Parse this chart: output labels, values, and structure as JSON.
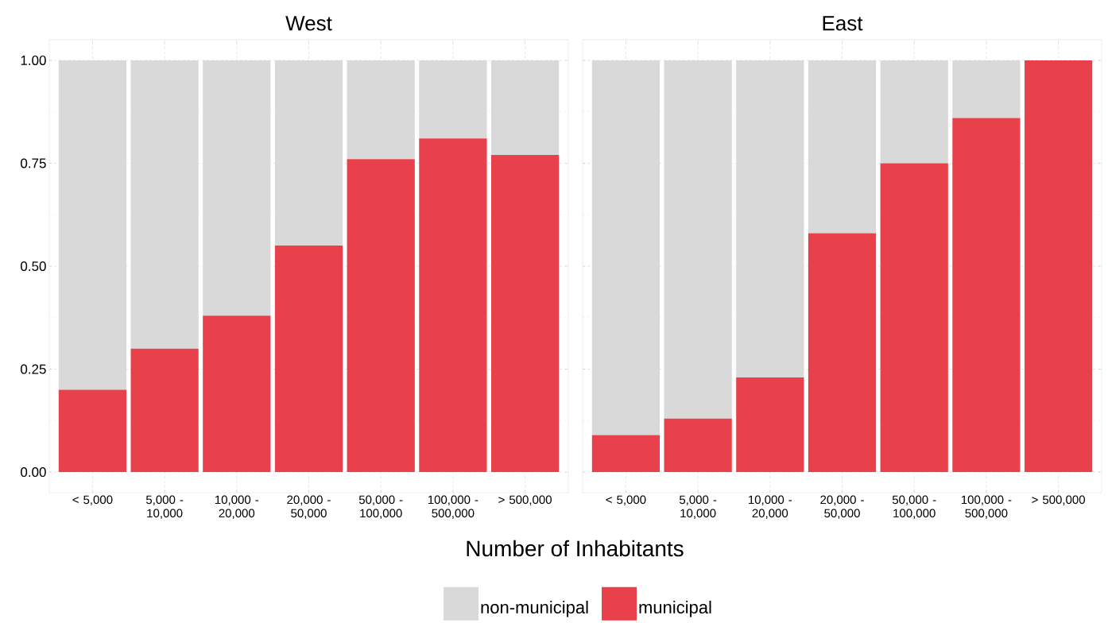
{
  "chart_data": [
    {
      "type": "bar",
      "title": "West",
      "xlabel": "Number of Inhabitants",
      "stacked": true,
      "grid": true,
      "legend": "bottom",
      "categories": [
        "< 5,000",
        "5,000 - 10,000",
        "10,000 - 20,000",
        "20,000 - 50,000",
        "50,000 - 100,000",
        "100,000 - 500,000",
        "> 500,000"
      ],
      "series": [
        {
          "name": "municipal",
          "color": "#e8414b",
          "values": [
            0.2,
            0.3,
            0.38,
            0.55,
            0.76,
            0.81,
            0.77
          ]
        },
        {
          "name": "non-municipal",
          "color": "#d9d9d9",
          "values": [
            0.8,
            0.7,
            0.62,
            0.45,
            0.24,
            0.19,
            0.23
          ]
        }
      ],
      "ylim": [
        -0.05,
        1.05
      ],
      "yticks": [
        {
          "value": 0,
          "label": "0.00"
        },
        {
          "value": 0.25,
          "label": "0.25"
        },
        {
          "value": 0.5,
          "label": "0.50"
        },
        {
          "value": 0.75,
          "label": "0.75"
        },
        {
          "value": 1,
          "label": "1.00"
        }
      ]
    },
    {
      "type": "bar",
      "title": "East",
      "stacked": true,
      "grid": true,
      "tick_labels": "x",
      "categories": [
        "< 5,000",
        "5,000 - 10,000",
        "10,000 - 20,000",
        "20,000 - 50,000",
        "50,000 - 100,000",
        "100,000 - 500,000",
        "> 500,000"
      ],
      "series": [
        {
          "color": "#e8414b",
          "values": [
            0.09,
            0.13,
            0.23,
            0.58,
            0.75,
            0.86,
            1.0
          ]
        },
        {
          "color": "#d9d9d9",
          "values": [
            0.91,
            0.87,
            0.77,
            0.42,
            0.25,
            0.14,
            0.0
          ]
        }
      ],
      "ylim": [
        -0.05,
        1.05
      ],
      "yticks": [
        0,
        0.25,
        0.5,
        0.75,
        1
      ]
    }
  ]
}
